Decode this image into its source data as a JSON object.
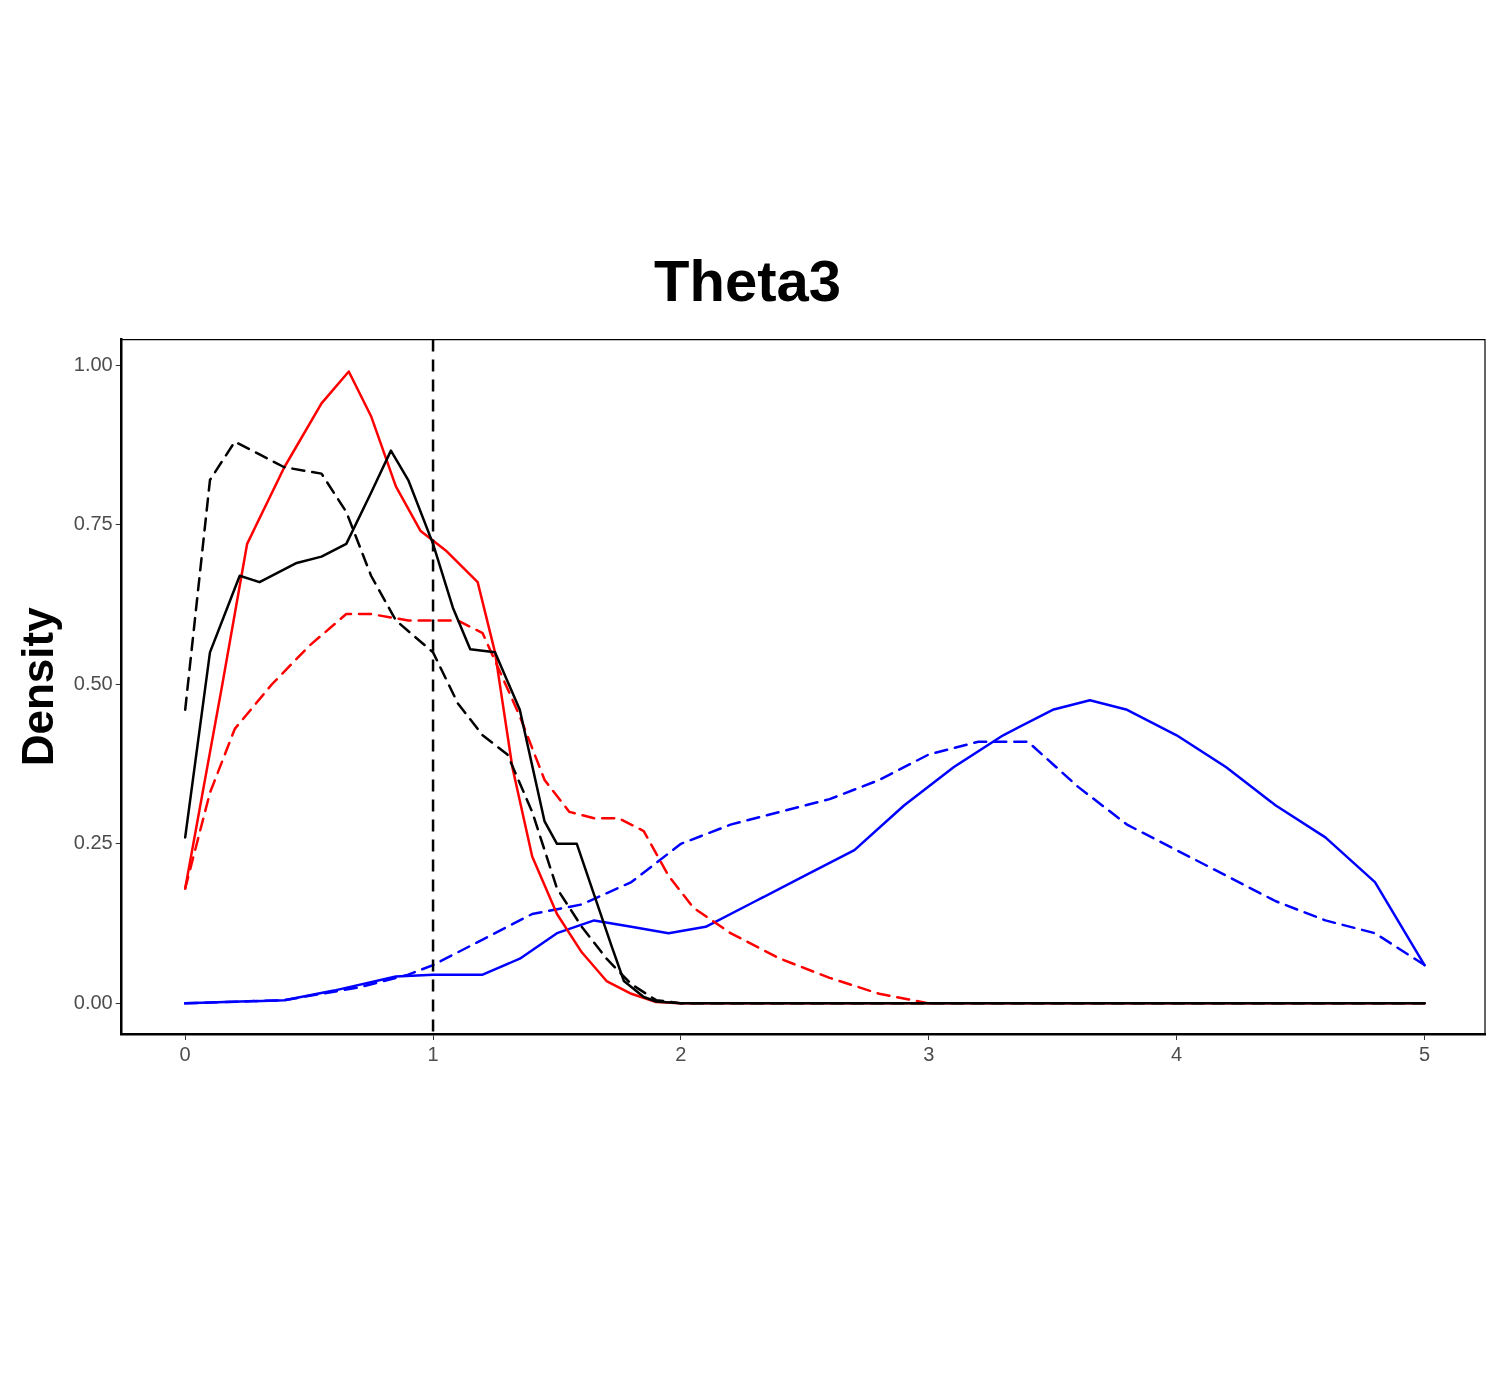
{
  "chart_data": {
    "type": "line",
    "title": "Theta3",
    "ylabel": "Density",
    "xlim": [
      -0.256,
      5.244
    ],
    "ylim": [
      -0.048,
      1.04
    ],
    "xticks": [
      0,
      1,
      2,
      3,
      4,
      5
    ],
    "yticks": [
      {
        "value": 0,
        "label": "0.00"
      },
      {
        "value": 0.25,
        "label": "0.25"
      },
      {
        "value": 0.5,
        "label": "0.50"
      },
      {
        "value": 0.75,
        "label": "0.75"
      },
      {
        "value": 1,
        "label": "1.00"
      }
    ],
    "grid": false,
    "legend": false,
    "marker": "none",
    "ref_lines": [
      {
        "axis": "x",
        "value": 1,
        "color": "#000000",
        "line_style": "dashed"
      }
    ],
    "series": [
      {
        "color": "#000000",
        "line_style": "solid",
        "x": [
          0,
          0.1,
          0.22,
          0.3,
          0.45,
          0.55,
          0.65,
          0.75,
          0.83,
          0.9,
          1.0,
          1.08,
          1.15,
          1.25,
          1.35,
          1.45,
          1.5,
          1.58,
          1.65,
          1.72,
          1.77,
          1.85,
          1.9,
          2.0,
          5.0
        ],
        "values": [
          0.26,
          0.55,
          0.67,
          0.66,
          0.69,
          0.7,
          0.72,
          0.8,
          0.866,
          0.82,
          0.72,
          0.62,
          0.555,
          0.55,
          0.46,
          0.285,
          0.25,
          0.25,
          0.17,
          0.09,
          0.035,
          0.01,
          0.003,
          0,
          0
        ]
      },
      {
        "color": "#000000",
        "line_style": "dashed",
        "x": [
          0,
          0.1,
          0.2,
          0.3,
          0.4,
          0.55,
          0.65,
          0.75,
          0.85,
          1.0,
          1.1,
          1.2,
          1.3,
          1.4,
          1.5,
          1.6,
          1.7,
          1.8,
          1.9,
          2.0,
          5.0
        ],
        "values": [
          0.46,
          0.82,
          0.88,
          0.86,
          0.84,
          0.83,
          0.77,
          0.67,
          0.6,
          0.55,
          0.47,
          0.42,
          0.39,
          0.3,
          0.18,
          0.12,
          0.07,
          0.03,
          0.005,
          0,
          0
        ]
      },
      {
        "color": "#ff0000",
        "line_style": "solid",
        "x": [
          0,
          0.15,
          0.25,
          0.4,
          0.55,
          0.66,
          0.75,
          0.85,
          0.95,
          1.05,
          1.18,
          1.25,
          1.32,
          1.4,
          1.5,
          1.6,
          1.7,
          1.8,
          1.9,
          2.0,
          5.0
        ],
        "values": [
          0.18,
          0.5,
          0.72,
          0.84,
          0.94,
          0.99,
          0.92,
          0.81,
          0.74,
          0.71,
          0.66,
          0.55,
          0.37,
          0.23,
          0.14,
          0.08,
          0.035,
          0.015,
          0.002,
          0,
          0
        ]
      },
      {
        "color": "#ff0000",
        "line_style": "dashed",
        "x": [
          0,
          0.1,
          0.2,
          0.35,
          0.5,
          0.65,
          0.75,
          0.9,
          1.1,
          1.2,
          1.35,
          1.45,
          1.55,
          1.65,
          1.75,
          1.85,
          1.95,
          2.05,
          2.2,
          2.4,
          2.6,
          2.8,
          3.0
        ],
        "values": [
          0.18,
          0.33,
          0.43,
          0.5,
          0.56,
          0.61,
          0.61,
          0.6,
          0.6,
          0.58,
          0.45,
          0.35,
          0.3,
          0.29,
          0.29,
          0.27,
          0.2,
          0.15,
          0.11,
          0.07,
          0.04,
          0.015,
          0
        ]
      },
      {
        "color": "#0000ff",
        "line_style": "solid",
        "x": [
          0,
          0.4,
          0.6,
          0.85,
          1.0,
          1.2,
          1.35,
          1.5,
          1.65,
          1.8,
          1.95,
          2.1,
          2.3,
          2.5,
          2.7,
          2.9,
          3.1,
          3.3,
          3.5,
          3.65,
          3.8,
          4.0,
          4.2,
          4.4,
          4.6,
          4.8,
          5.0
        ],
        "values": [
          0,
          0.005,
          0.02,
          0.042,
          0.045,
          0.045,
          0.07,
          0.11,
          0.13,
          0.12,
          0.11,
          0.12,
          0.16,
          0.2,
          0.24,
          0.31,
          0.37,
          0.42,
          0.46,
          0.475,
          0.46,
          0.42,
          0.37,
          0.31,
          0.26,
          0.19,
          0.06
        ]
      },
      {
        "color": "#0000ff",
        "line_style": "dashed",
        "x": [
          0,
          0.4,
          0.7,
          0.9,
          1.0,
          1.2,
          1.4,
          1.6,
          1.8,
          2.0,
          2.2,
          2.4,
          2.6,
          2.8,
          3.0,
          3.2,
          3.4,
          3.6,
          3.8,
          4.0,
          4.2,
          4.4,
          4.6,
          4.8,
          5.0
        ],
        "values": [
          0,
          0.005,
          0.025,
          0.045,
          0.06,
          0.1,
          0.14,
          0.155,
          0.19,
          0.25,
          0.28,
          0.3,
          0.32,
          0.35,
          0.39,
          0.41,
          0.41,
          0.34,
          0.28,
          0.24,
          0.2,
          0.16,
          0.13,
          0.11,
          0.06
        ]
      }
    ]
  }
}
